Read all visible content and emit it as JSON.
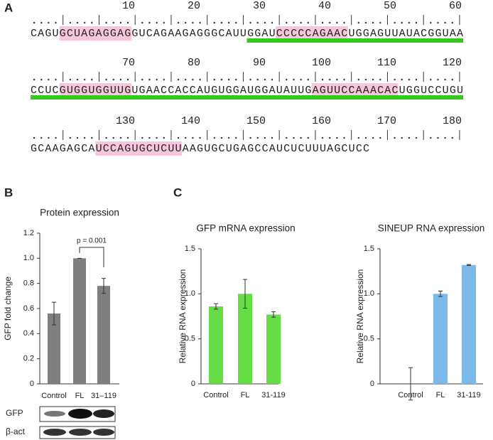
{
  "panel_labels": [
    "A",
    "B",
    "C"
  ],
  "sequence": {
    "ruler": [
      10,
      20,
      30,
      40,
      50,
      60,
      70,
      80,
      90,
      100,
      110,
      120,
      130,
      140,
      150,
      160,
      170,
      180
    ],
    "lines": [
      "CAGUGCUAGAGGAGGUCAGAAGAGGGCAUUGGAUCCCCCAGAACUGGAGUUAUACGGUAA",
      "CCUCGUGGUGGUUGUGAACCACCAUGUGGAUGGAUAUUGAGUUCCAAACACUGGUCCUGU",
      "GCAAGAGCAUCCAGUGCUCUUAAGUGCUGAGCCAUCUCUUUAGCUCC"
    ]
  },
  "chart_data": [
    {
      "type": "bar",
      "title": "Protein expression",
      "y_label": "GFP fold change",
      "categories": [
        "Control",
        "FL",
        "31–119"
      ],
      "values": [
        0.56,
        1.0,
        0.78
      ],
      "errors": [
        0.09,
        0.0,
        0.06
      ],
      "color": "#7f7f7f",
      "ylim": [
        0,
        1.2
      ],
      "yticks": [
        0,
        {
          "value": 0.2,
          "label": "0.2"
        },
        {
          "value": 0.4,
          "label": "0.4"
        },
        {
          "value": 0.6,
          "label": "0.6"
        },
        {
          "value": 0.8,
          "label": "0.8"
        },
        {
          "value": 1,
          "label": "1.0"
        },
        {
          "value": 1.2,
          "label": "1.2"
        }
      ],
      "annotation": "p = 0.001"
    },
    {
      "type": "bar",
      "title": "GFP mRNA expression",
      "y_label": "Relative RNA expression",
      "categories": [
        "Control",
        "FL",
        "31-119"
      ],
      "values": [
        0.86,
        1.0,
        0.77
      ],
      "errors": [
        0.03,
        0.16,
        0.03
      ],
      "color": "#66dd44",
      "ylim": [
        0,
        1.5
      ],
      "yticks": [
        0,
        {
          "value": 0.5,
          "label": "0.5"
        },
        {
          "value": 1,
          "label": "1.0"
        },
        {
          "value": 1.5,
          "label": "1.5"
        }
      ]
    },
    {
      "type": "bar",
      "title": "SINEUP RNA expression",
      "y_label": "Relative RNA expression",
      "categories": [
        "Control",
        "FL",
        "31-119"
      ],
      "values": [
        0.0,
        1.0,
        1.32
      ],
      "errors": [
        0.18,
        0.03,
        0.005
      ],
      "color": "#7cb9e8",
      "ylim": [
        0,
        1.5
      ],
      "yticks": [
        0,
        {
          "value": 0.5,
          "label": "0.5"
        },
        {
          "value": 1,
          "label": "1.0"
        },
        {
          "value": 1.5,
          "label": "1.5"
        }
      ]
    }
  ],
  "blot": {
    "labels": [
      "GFP",
      "β-act"
    ]
  }
}
